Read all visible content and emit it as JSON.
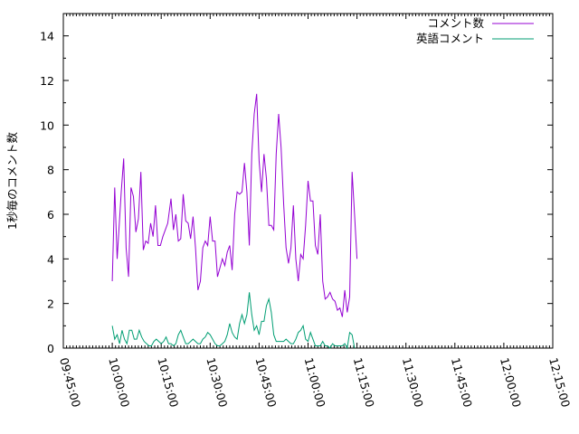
{
  "chart_data": {
    "type": "line",
    "title": "",
    "xlabel": "",
    "ylabel": "1秒毎のコメント数",
    "xlim": [
      "09:45:00",
      "12:15:00"
    ],
    "ylim": [
      0,
      15
    ],
    "x_ticks": [
      "09:45:00",
      "10:00:00",
      "10:15:00",
      "10:30:00",
      "10:45:00",
      "11:00:00",
      "11:15:00",
      "11:30:00",
      "11:45:00",
      "12:00:00",
      "12:15:00"
    ],
    "y_ticks": [
      0,
      2,
      4,
      6,
      8,
      10,
      12,
      14
    ],
    "grid": false,
    "legend_position": "top-right",
    "series": [
      {
        "name": "コメント数",
        "color": "#9400d3",
        "points": [
          [
            "10:00:00",
            3.0
          ],
          [
            "10:00:45",
            7.2
          ],
          [
            "10:01:30",
            4.0
          ],
          [
            "10:02:45",
            7.0
          ],
          [
            "10:03:30",
            8.5
          ],
          [
            "10:04:15",
            4.5
          ],
          [
            "10:05:00",
            3.2
          ],
          [
            "10:05:45",
            7.2
          ],
          [
            "10:06:30",
            6.8
          ],
          [
            "10:07:15",
            5.2
          ],
          [
            "10:08:00",
            5.8
          ],
          [
            "10:08:45",
            7.9
          ],
          [
            "10:09:30",
            4.4
          ],
          [
            "10:10:15",
            4.8
          ],
          [
            "10:11:00",
            4.7
          ],
          [
            "10:11:45",
            5.6
          ],
          [
            "10:12:30",
            5.0
          ],
          [
            "10:13:15",
            6.4
          ],
          [
            "10:14:00",
            4.6
          ],
          [
            "10:14:45",
            4.6
          ],
          [
            "10:15:30",
            5.0
          ],
          [
            "10:16:15",
            5.3
          ],
          [
            "10:17:00",
            5.6
          ],
          [
            "10:18:00",
            6.7
          ],
          [
            "10:18:45",
            5.3
          ],
          [
            "10:19:30",
            6.0
          ],
          [
            "10:20:15",
            4.8
          ],
          [
            "10:21:00",
            4.9
          ],
          [
            "10:21:45",
            6.9
          ],
          [
            "10:22:30",
            5.7
          ],
          [
            "10:23:15",
            5.6
          ],
          [
            "10:24:00",
            4.9
          ],
          [
            "10:24:45",
            5.9
          ],
          [
            "10:25:30",
            4.5
          ],
          [
            "10:26:15",
            2.6
          ],
          [
            "10:27:00",
            3.0
          ],
          [
            "10:27:45",
            4.5
          ],
          [
            "10:28:30",
            4.8
          ],
          [
            "10:29:15",
            4.6
          ],
          [
            "10:30:00",
            5.9
          ],
          [
            "10:30:45",
            4.8
          ],
          [
            "10:31:30",
            4.8
          ],
          [
            "10:32:15",
            3.2
          ],
          [
            "10:33:00",
            3.6
          ],
          [
            "10:33:45",
            4.0
          ],
          [
            "10:34:30",
            3.7
          ],
          [
            "10:35:15",
            4.3
          ],
          [
            "10:36:00",
            4.6
          ],
          [
            "10:36:45",
            3.5
          ],
          [
            "10:37:30",
            6.0
          ],
          [
            "10:38:15",
            7.0
          ],
          [
            "10:39:00",
            6.9
          ],
          [
            "10:39:45",
            7.0
          ],
          [
            "10:40:30",
            8.3
          ],
          [
            "10:41:15",
            7.0
          ],
          [
            "10:42:00",
            4.6
          ],
          [
            "10:42:45",
            8.7
          ],
          [
            "10:43:30",
            10.5
          ],
          [
            "10:44:15",
            11.4
          ],
          [
            "10:45:00",
            8.4
          ],
          [
            "10:45:45",
            7.0
          ],
          [
            "10:46:30",
            8.7
          ],
          [
            "10:47:15",
            7.6
          ],
          [
            "10:48:00",
            5.5
          ],
          [
            "10:48:45",
            5.5
          ],
          [
            "10:49:30",
            5.3
          ],
          [
            "10:50:15",
            8.7
          ],
          [
            "10:51:00",
            10.5
          ],
          [
            "10:51:45",
            9.0
          ],
          [
            "10:52:30",
            6.5
          ],
          [
            "10:53:15",
            4.5
          ],
          [
            "10:54:00",
            3.8
          ],
          [
            "10:54:45",
            4.5
          ],
          [
            "10:55:30",
            6.4
          ],
          [
            "10:56:15",
            4.0
          ],
          [
            "10:57:00",
            3.0
          ],
          [
            "10:57:45",
            4.2
          ],
          [
            "10:58:30",
            4.0
          ],
          [
            "10:59:15",
            5.5
          ],
          [
            "11:00:00",
            7.5
          ],
          [
            "11:00:45",
            6.6
          ],
          [
            "11:01:30",
            6.6
          ],
          [
            "11:02:15",
            4.6
          ],
          [
            "11:03:00",
            4.2
          ],
          [
            "11:03:45",
            6.0
          ],
          [
            "11:04:30",
            3.0
          ],
          [
            "11:05:15",
            2.2
          ],
          [
            "11:06:00",
            2.3
          ],
          [
            "11:06:45",
            2.5
          ],
          [
            "11:07:30",
            2.2
          ],
          [
            "11:08:15",
            2.1
          ],
          [
            "11:09:00",
            1.7
          ],
          [
            "11:09:45",
            1.8
          ],
          [
            "11:10:30",
            1.4
          ],
          [
            "11:11:15",
            2.6
          ],
          [
            "11:12:00",
            1.6
          ],
          [
            "11:12:45",
            2.3
          ],
          [
            "11:13:30",
            7.9
          ],
          [
            "11:14:15",
            6.0
          ],
          [
            "11:15:00",
            4.0
          ]
        ]
      },
      {
        "name": "英語コメント",
        "color": "#009e73",
        "points": [
          [
            "10:00:00",
            1.0
          ],
          [
            "10:00:45",
            0.4
          ],
          [
            "10:01:30",
            0.6
          ],
          [
            "10:02:15",
            0.2
          ],
          [
            "10:03:00",
            0.8
          ],
          [
            "10:03:45",
            0.4
          ],
          [
            "10:04:30",
            0.2
          ],
          [
            "10:05:15",
            0.8
          ],
          [
            "10:06:00",
            0.8
          ],
          [
            "10:06:45",
            0.4
          ],
          [
            "10:07:30",
            0.4
          ],
          [
            "10:08:15",
            0.8
          ],
          [
            "10:09:00",
            0.5
          ],
          [
            "10:09:45",
            0.3
          ],
          [
            "10:10:30",
            0.2
          ],
          [
            "10:11:15",
            0.1
          ],
          [
            "10:12:00",
            0.1
          ],
          [
            "10:12:45",
            0.3
          ],
          [
            "10:13:30",
            0.4
          ],
          [
            "10:14:15",
            0.3
          ],
          [
            "10:15:00",
            0.2
          ],
          [
            "10:15:45",
            0.3
          ],
          [
            "10:16:30",
            0.5
          ],
          [
            "10:17:15",
            0.2
          ],
          [
            "10:18:00",
            0.2
          ],
          [
            "10:18:45",
            0.1
          ],
          [
            "10:19:30",
            0.2
          ],
          [
            "10:20:15",
            0.6
          ],
          [
            "10:21:00",
            0.8
          ],
          [
            "10:21:45",
            0.5
          ],
          [
            "10:22:30",
            0.2
          ],
          [
            "10:23:15",
            0.2
          ],
          [
            "10:24:00",
            0.3
          ],
          [
            "10:24:45",
            0.4
          ],
          [
            "10:25:30",
            0.3
          ],
          [
            "10:26:15",
            0.2
          ],
          [
            "10:27:00",
            0.2
          ],
          [
            "10:27:45",
            0.4
          ],
          [
            "10:28:30",
            0.5
          ],
          [
            "10:29:15",
            0.7
          ],
          [
            "10:30:00",
            0.6
          ],
          [
            "10:30:45",
            0.4
          ],
          [
            "10:31:30",
            0.2
          ],
          [
            "10:32:15",
            0.1
          ],
          [
            "10:33:00",
            0.1
          ],
          [
            "10:33:45",
            0.2
          ],
          [
            "10:34:30",
            0.3
          ],
          [
            "10:35:15",
            0.6
          ],
          [
            "10:36:00",
            1.1
          ],
          [
            "10:36:45",
            0.7
          ],
          [
            "10:37:30",
            0.5
          ],
          [
            "10:38:15",
            0.4
          ],
          [
            "10:39:00",
            1.1
          ],
          [
            "10:39:45",
            1.5
          ],
          [
            "10:40:30",
            1.1
          ],
          [
            "10:41:15",
            1.5
          ],
          [
            "10:42:00",
            2.5
          ],
          [
            "10:42:45",
            1.5
          ],
          [
            "10:43:30",
            0.8
          ],
          [
            "10:44:15",
            1.0
          ],
          [
            "10:45:00",
            0.6
          ],
          [
            "10:45:45",
            1.2
          ],
          [
            "10:46:30",
            1.2
          ],
          [
            "10:47:15",
            1.9
          ],
          [
            "10:48:00",
            2.2
          ],
          [
            "10:48:45",
            1.6
          ],
          [
            "10:49:30",
            0.6
          ],
          [
            "10:50:15",
            0.3
          ],
          [
            "10:51:00",
            0.3
          ],
          [
            "10:51:45",
            0.3
          ],
          [
            "10:52:30",
            0.3
          ],
          [
            "10:53:15",
            0.4
          ],
          [
            "10:54:00",
            0.3
          ],
          [
            "10:54:45",
            0.2
          ],
          [
            "10:55:30",
            0.2
          ],
          [
            "10:56:15",
            0.4
          ],
          [
            "10:57:00",
            0.7
          ],
          [
            "10:57:45",
            0.8
          ],
          [
            "10:58:30",
            1.0
          ],
          [
            "10:59:15",
            0.4
          ],
          [
            "11:00:00",
            0.3
          ],
          [
            "11:00:45",
            0.7
          ],
          [
            "11:01:30",
            0.4
          ],
          [
            "11:02:15",
            0.1
          ],
          [
            "11:03:00",
            0.1
          ],
          [
            "11:03:45",
            0.1
          ],
          [
            "11:04:30",
            0.3
          ],
          [
            "11:05:15",
            0.1
          ],
          [
            "11:06:00",
            0.1
          ],
          [
            "11:06:45",
            0.0
          ],
          [
            "11:07:30",
            0.2
          ],
          [
            "11:08:15",
            0.1
          ],
          [
            "11:09:00",
            0.1
          ],
          [
            "11:09:45",
            0.1
          ],
          [
            "11:10:30",
            0.1
          ],
          [
            "11:11:15",
            0.2
          ],
          [
            "11:12:00",
            0.0
          ],
          [
            "11:12:45",
            0.7
          ],
          [
            "11:13:30",
            0.6
          ],
          [
            "11:14:15",
            0.0
          ]
        ]
      }
    ]
  }
}
